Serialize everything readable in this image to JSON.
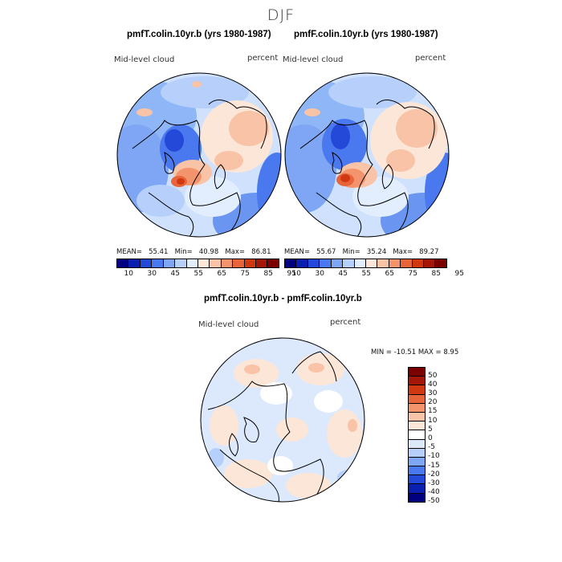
{
  "figure": {
    "season": "DJF",
    "title_left": "pmfT.colin.10yr.b (yrs 1980-1987)",
    "title_right": "pmfF.colin.10yr.b (yrs 1980-1987)",
    "title_diff": "pmfT.colin.10yr.b - pmfF.colin.10yr.b"
  },
  "panels": {
    "left": {
      "variable": "Mid-level cloud",
      "units": "percent",
      "mean_label": "MEAN=",
      "mean": "55.41",
      "min_label": "Min=",
      "min": "40.98",
      "max_label": "Max=",
      "max": "86.81"
    },
    "right": {
      "variable": "Mid-level cloud",
      "units": "percent",
      "mean_label": "MEAN=",
      "mean": "55.67",
      "min_label": "Min=",
      "min": "35.24",
      "max_label": "Max=",
      "max": "89.27"
    },
    "diff": {
      "variable": "Mid-level cloud",
      "units": "percent",
      "minmax_text": "MIN = -10.51 MAX =    8.95"
    }
  },
  "colorbars": {
    "main": {
      "colors": [
        "#000080",
        "#0a1fb0",
        "#2448d8",
        "#4a78ee",
        "#7ea6f5",
        "#b6d0fb",
        "#e2eefe",
        "#fce6d8",
        "#f8c3a6",
        "#f3946d",
        "#e8643a",
        "#d03812",
        "#a41608",
        "#7a0000"
      ],
      "ticks": [
        "10",
        "30",
        "45",
        "55",
        "65",
        "75",
        "85",
        "95"
      ]
    },
    "diff": {
      "colors": [
        "#7a0000",
        "#a41608",
        "#d03812",
        "#e8643a",
        "#f3946d",
        "#f8c3a6",
        "#fce6d8",
        "#ffffff",
        "#dce9fd",
        "#b6d0fb",
        "#7ea6f5",
        "#4a78ee",
        "#2448d8",
        "#0a1fb0",
        "#000080"
      ],
      "ticks": [
        "50",
        "40",
        "30",
        "20",
        "15",
        "10",
        "5",
        "0",
        "-5",
        "-10",
        "-15",
        "-20",
        "-30",
        "-40",
        "-50"
      ]
    }
  }
}
